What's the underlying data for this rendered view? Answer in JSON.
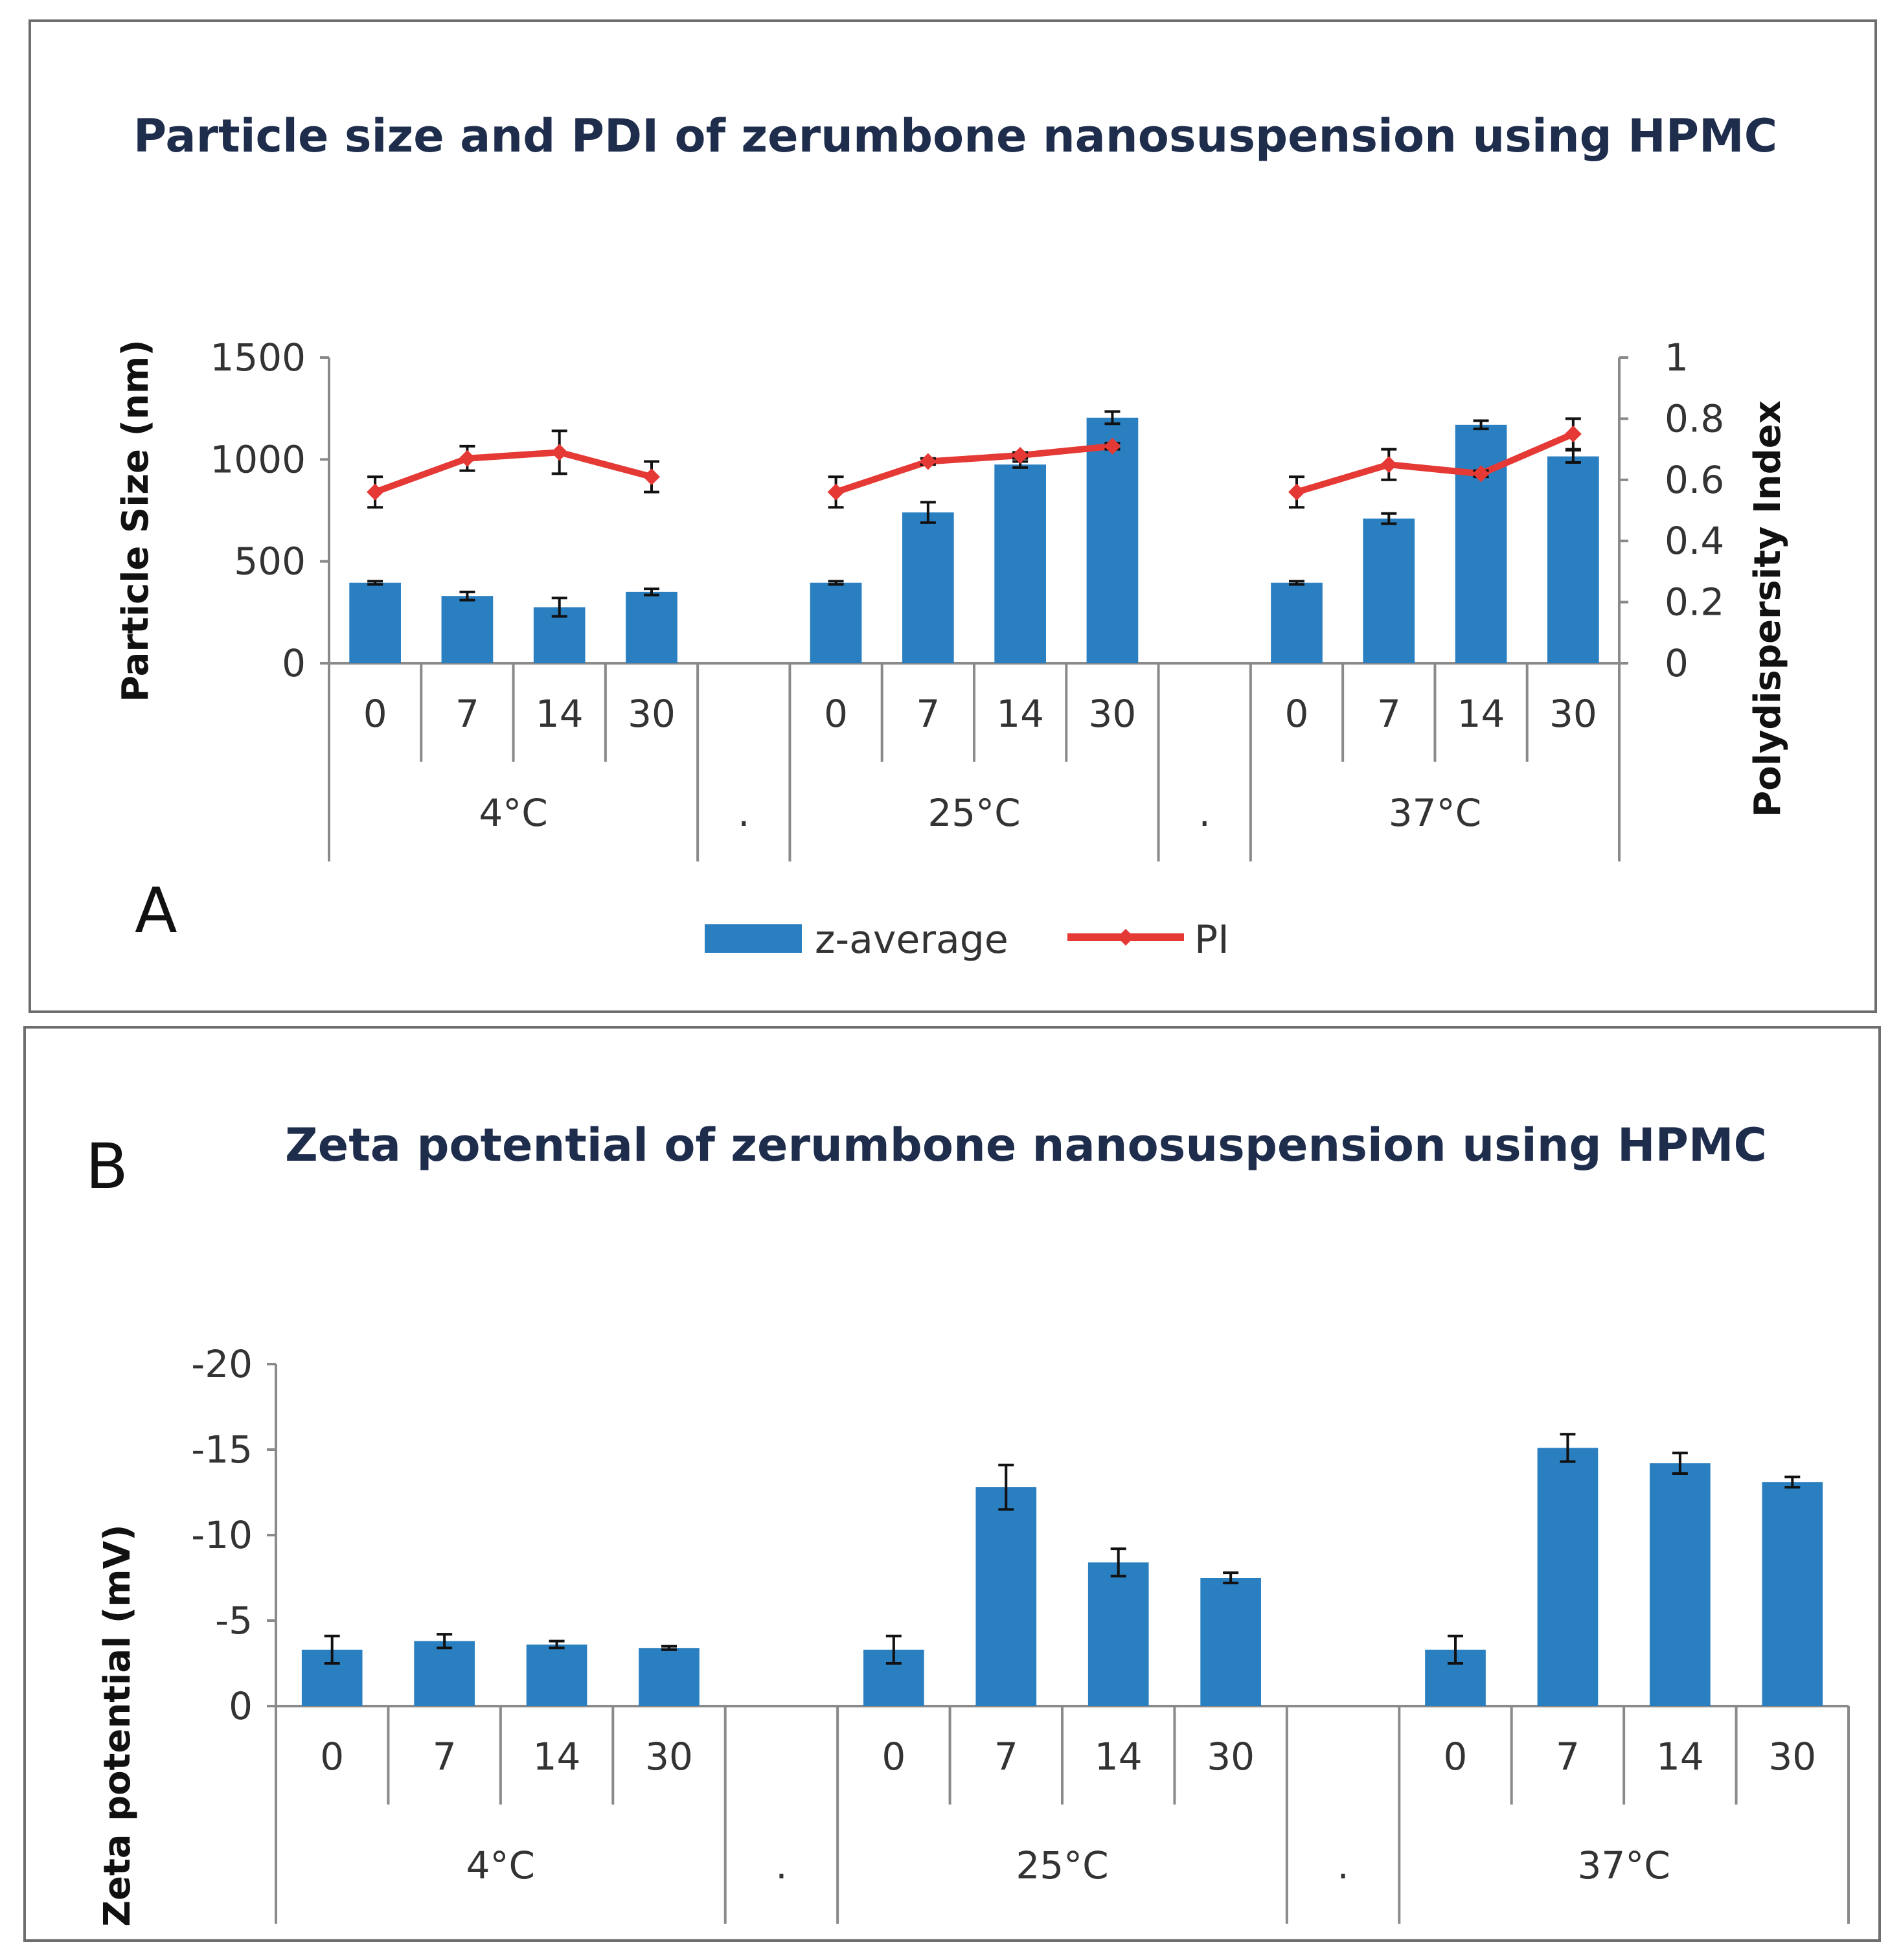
{
  "chart_data": [
    {
      "type": "bar",
      "panel_label": "A",
      "title": "Particle size and PDI of zerumbone nanosuspension using HPMC",
      "ylabel": "Particle Size (nm)",
      "y2label": "Polydispersity Index",
      "ylim": [
        0,
        1500
      ],
      "y2lim": [
        0,
        1
      ],
      "yticks": [
        "1500",
        "1000",
        "500",
        "0"
      ],
      "y2ticks": [
        "1",
        "0.8",
        "0.6",
        "0.4",
        "0.2",
        "0"
      ],
      "groups": [
        {
          "label": "4°C",
          "categories": [
            "0",
            "7",
            "14",
            "30"
          ]
        },
        {
          "label": ".",
          "categories": [
            ""
          ]
        },
        {
          "label": "25°C",
          "categories": [
            "0",
            "7",
            "14",
            "30"
          ]
        },
        {
          "label": ".",
          "categories": [
            ""
          ]
        },
        {
          "label": "37°C",
          "categories": [
            "0",
            "7",
            "14",
            "30"
          ]
        }
      ],
      "series": [
        {
          "name": "z-average",
          "type": "bar",
          "color": "#2a7fc1",
          "values": [
            395,
            330,
            275,
            350,
            null,
            395,
            740,
            975,
            1205,
            null,
            395,
            710,
            1170,
            1015
          ],
          "errors": [
            8,
            20,
            45,
            15,
            null,
            8,
            50,
            15,
            30,
            null,
            8,
            25,
            20,
            30
          ]
        },
        {
          "name": "PI",
          "type": "line",
          "axis": "right",
          "color": "#e53935",
          "values": [
            0.56,
            0.67,
            0.69,
            0.61,
            null,
            0.56,
            0.66,
            0.68,
            0.71,
            null,
            0.56,
            0.65,
            0.62,
            0.75
          ],
          "errors": [
            0.05,
            0.04,
            0.07,
            0.05,
            null,
            0.05,
            0.01,
            0.01,
            0.01,
            null,
            0.05,
            0.05,
            0.01,
            0.05
          ]
        }
      ],
      "legend": {
        "position": "bottom",
        "items": [
          "z-average",
          "PI"
        ]
      }
    },
    {
      "type": "bar",
      "panel_label": "B",
      "title": "Zeta potential of zerumbone nanosuspension using HPMC",
      "ylabel": "Zeta potential (mV)",
      "ylim": [
        0,
        -20
      ],
      "yticks": [
        "-20",
        "-15",
        "-10",
        "-5",
        "0"
      ],
      "groups": [
        {
          "label": "4°C",
          "categories": [
            "0",
            "7",
            "14",
            "30"
          ]
        },
        {
          "label": ".",
          "categories": [
            ""
          ]
        },
        {
          "label": "25°C",
          "categories": [
            "0",
            "7",
            "14",
            "30"
          ]
        },
        {
          "label": ".",
          "categories": [
            ""
          ]
        },
        {
          "label": "37°C",
          "categories": [
            "0",
            "7",
            "14",
            "30"
          ]
        }
      ],
      "series": [
        {
          "name": "Zeta potential",
          "type": "bar",
          "color": "#2a7fc1",
          "values": [
            -3.3,
            -3.8,
            -3.6,
            -3.4,
            null,
            -3.3,
            -12.8,
            -8.4,
            -7.5,
            null,
            -3.3,
            -15.1,
            -14.2,
            -13.1
          ],
          "errors": [
            0.8,
            0.4,
            0.2,
            0.1,
            null,
            0.8,
            1.3,
            0.8,
            0.3,
            null,
            0.8,
            0.8,
            0.6,
            0.3
          ]
        }
      ]
    }
  ]
}
